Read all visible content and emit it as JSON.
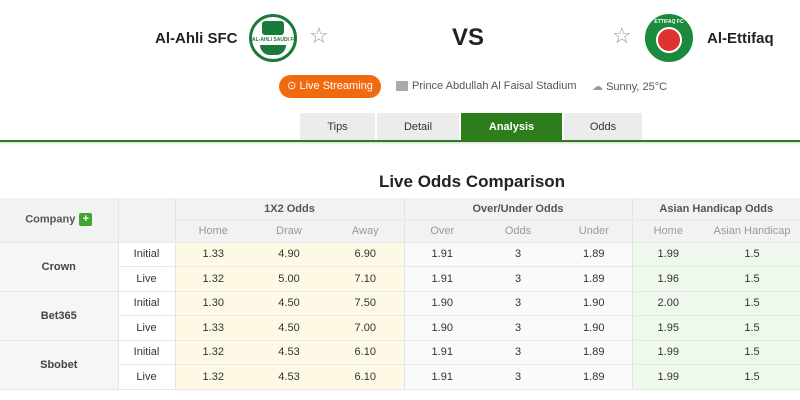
{
  "header": {
    "home_team": "Al-Ahli SFC",
    "away_team": "Al-Ettifaq",
    "vs": "VS",
    "live_label": "Live Streaming",
    "stadium": "Prince Abdullah Al Faisal Stadium",
    "weather": "Sunny, 25°C",
    "home_logo_text": "AL-AHLI SAUDI FC",
    "away_logo_text": "ETTIFAQ FC"
  },
  "tabs": [
    {
      "label": "Tips"
    },
    {
      "label": "Detail"
    },
    {
      "label": "Analysis",
      "active": true
    },
    {
      "label": "Odds"
    }
  ],
  "section_title": "Live Odds Comparison",
  "table": {
    "company_header": "Company",
    "groups": [
      "1X2 Odds",
      "Over/Under Odds",
      "Asian Handicap Odds"
    ],
    "subheaders": [
      "Home",
      "Draw",
      "Away",
      "Over",
      "Odds",
      "Under",
      "Home",
      "Asian Handicap"
    ],
    "rows": [
      {
        "company": "Crown",
        "lines": [
          {
            "type": "Initial",
            "v": [
              "1.33",
              "4.90",
              "6.90",
              "1.91",
              "3",
              "1.89",
              "1.99",
              "1.5"
            ]
          },
          {
            "type": "Live",
            "v": [
              "1.32",
              "5.00",
              "7.10",
              "1.91",
              "3",
              "1.89",
              "1.96",
              "1.5"
            ]
          }
        ]
      },
      {
        "company": "Bet365",
        "lines": [
          {
            "type": "Initial",
            "v": [
              "1.30",
              "4.50",
              "7.50",
              "1.90",
              "3",
              "1.90",
              "2.00",
              "1.5"
            ]
          },
          {
            "type": "Live",
            "v": [
              "1.33",
              "4.50",
              "7.00",
              "1.90",
              "3",
              "1.90",
              "1.95",
              "1.5"
            ]
          }
        ]
      },
      {
        "company": "Sbobet",
        "lines": [
          {
            "type": "Initial",
            "v": [
              "1.32",
              "4.53",
              "6.10",
              "1.91",
              "3",
              "1.89",
              "1.99",
              "1.5"
            ]
          },
          {
            "type": "Live",
            "v": [
              "1.32",
              "4.53",
              "6.10",
              "1.91",
              "3",
              "1.89",
              "1.99",
              "1.5"
            ]
          }
        ]
      }
    ]
  },
  "colors": {
    "accent": "#2e7d1c",
    "live": "#f26a10"
  }
}
